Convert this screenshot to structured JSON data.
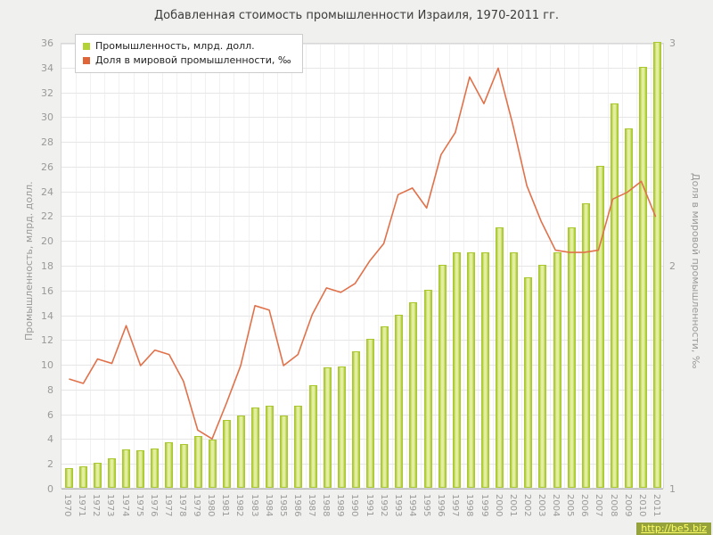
{
  "title": "Добавленная стоимость промышленности Израиля, 1970-2011 гг.",
  "legend": [
    {
      "label": "Промышленность, млрд. долл.",
      "color": "#b2d235"
    },
    {
      "label": "Доля в мировой промышленности, ‰",
      "color": "#e0663a"
    }
  ],
  "footer_link": "http://be5.biz",
  "colors": {
    "bar_fill": "#e4efa2",
    "bar_edge": "#a9c72e",
    "line": "#e0714a",
    "plot_bg": "#ffffff",
    "page_bg": "#f0f0ee"
  },
  "chart_data": {
    "type": "bar",
    "title": "Добавленная стоимость промышленности Израиля, 1970-2011 гг.",
    "categories": [
      "1970",
      "1971",
      "1972",
      "1973",
      "1974",
      "1975",
      "1976",
      "1977",
      "1978",
      "1979",
      "1980",
      "1981",
      "1982",
      "1983",
      "1984",
      "1985",
      "1986",
      "1987",
      "1988",
      "1989",
      "1990",
      "1991",
      "1992",
      "1993",
      "1994",
      "1995",
      "1996",
      "1997",
      "1998",
      "1999",
      "2000",
      "2001",
      "2002",
      "2003",
      "2004",
      "2005",
      "2006",
      "2007",
      "2008",
      "2009",
      "2010",
      "2011"
    ],
    "series": [
      {
        "name": "Промышленность, млрд. долл.",
        "type": "bar",
        "axis": "left",
        "color_fill": "#e4efa2",
        "color_edge": "#a9c72e",
        "values": [
          1.6,
          1.7,
          2.0,
          2.4,
          3.1,
          3.0,
          3.2,
          3.7,
          3.5,
          4.2,
          3.9,
          5.5,
          5.8,
          6.5,
          6.6,
          5.8,
          6.6,
          8.3,
          9.7,
          9.8,
          11.0,
          12.0,
          13.0,
          14.0,
          15.0,
          16.0,
          18.0,
          19.0,
          19.0,
          19.0,
          21.0,
          19.0,
          17.0,
          18.0,
          19.0,
          21.0,
          23.0,
          26.0,
          31.0,
          29.0,
          34.0,
          36.0
        ]
      },
      {
        "name": "Доля в мировой промышленности, ‰",
        "type": "line",
        "axis": "right",
        "color": "#e0714a",
        "values": [
          1.49,
          1.47,
          1.58,
          1.56,
          1.73,
          1.55,
          1.62,
          1.6,
          1.48,
          1.26,
          1.22,
          1.38,
          1.55,
          1.82,
          1.8,
          1.55,
          1.6,
          1.78,
          1.9,
          1.88,
          1.92,
          2.02,
          2.1,
          2.32,
          2.35,
          2.26,
          2.5,
          2.6,
          2.85,
          2.73,
          2.89,
          2.64,
          2.36,
          2.2,
          2.07,
          2.06,
          2.06,
          2.07,
          2.3,
          2.33,
          2.38,
          2.22
        ]
      }
    ],
    "left_axis": {
      "label": "Промышленность, млрд. долл.",
      "min": 0,
      "max": 36,
      "step": 2
    },
    "right_axis": {
      "label": "Доля в мировой промышленности, ‰",
      "min": 1,
      "max": 3,
      "ticks": [
        1,
        2,
        3
      ]
    },
    "grid": true,
    "legend_position": "top-left"
  }
}
